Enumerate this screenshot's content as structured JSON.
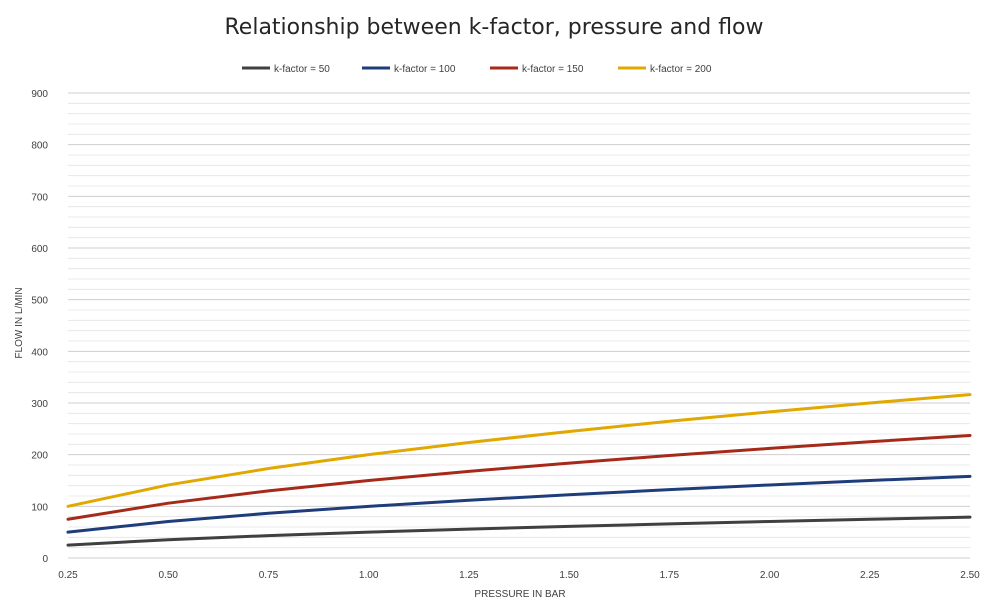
{
  "chart_data": {
    "type": "line",
    "title": "Relationship between k-factor, pressure and flow",
    "xlabel": "PRESSURE IN BAR",
    "ylabel": "FLOW IN L/MIN",
    "x": [
      0.25,
      0.5,
      0.75,
      1.0,
      1.25,
      1.5,
      1.75,
      2.0,
      2.25,
      2.5
    ],
    "x_tick_labels": [
      "0.25",
      "0.50",
      "0.75",
      "1.00",
      "1.25",
      "1.50",
      "1.75",
      "2.00",
      "2.25",
      "2.50"
    ],
    "y_tick_labels": [
      "0",
      "100",
      "200",
      "300",
      "400",
      "500",
      "600",
      "700",
      "800",
      "900"
    ],
    "ylim": [
      0,
      900
    ],
    "xlim": [
      0.25,
      2.5
    ],
    "grid": true,
    "legend_position": "top",
    "series": [
      {
        "name": "k-factor = 50",
        "color": "#404040",
        "values": [
          25,
          35.4,
          43.3,
          50,
          55.9,
          61.2,
          66.1,
          70.7,
          75,
          79.1
        ]
      },
      {
        "name": "k-factor = 100",
        "color": "#1f3d7a",
        "values": [
          50,
          70.7,
          86.6,
          100,
          111.8,
          122.5,
          132.3,
          141.4,
          150,
          158.1
        ]
      },
      {
        "name": "k-factor = 150",
        "color": "#a52a1a",
        "values": [
          75,
          106.1,
          129.9,
          150,
          167.7,
          183.7,
          198.4,
          212.1,
          225,
          237.2
        ]
      },
      {
        "name": "k-factor = 200",
        "color": "#e0a800",
        "values": [
          100,
          141.4,
          173.2,
          200,
          223.6,
          244.9,
          264.6,
          282.8,
          300,
          316.2
        ]
      }
    ]
  }
}
